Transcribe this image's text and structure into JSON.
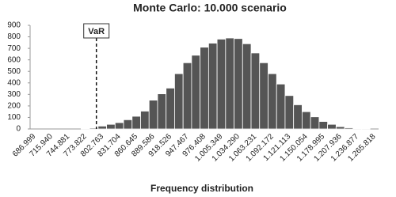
{
  "chart_data": {
    "type": "bar",
    "title": "Monte Carlo: 10.000 scenario",
    "x_label": "Frequency distribution",
    "annotation": "VaR",
    "categories": [
      "686.999",
      null,
      "715.940",
      null,
      "744.881",
      null,
      "773.822",
      null,
      "802.763",
      null,
      "831.704",
      null,
      "860.645",
      null,
      "889.586",
      null,
      "918.526",
      null,
      "947.467",
      null,
      "976.408",
      null,
      "1.005.349",
      null,
      "1.034.290",
      null,
      "1.063.231",
      null,
      "1.092.172",
      null,
      "1.121.113",
      null,
      "1.150.054",
      null,
      "1.178.995",
      null,
      "1.207.936",
      null,
      "1.236.877",
      null,
      "1.265.818"
    ],
    "values": [
      0,
      0,
      0,
      0,
      0,
      0,
      5,
      8,
      25,
      40,
      55,
      80,
      110,
      155,
      250,
      305,
      355,
      480,
      575,
      640,
      710,
      745,
      780,
      790,
      785,
      740,
      660,
      575,
      480,
      390,
      290,
      210,
      150,
      105,
      65,
      40,
      20,
      10,
      5,
      2,
      0
    ],
    "color": "#555555",
    "ylim": [
      0,
      900
    ],
    "yticks": [
      0,
      100,
      200,
      300,
      400,
      500,
      600,
      700,
      800,
      900
    ],
    "grid": false
  }
}
